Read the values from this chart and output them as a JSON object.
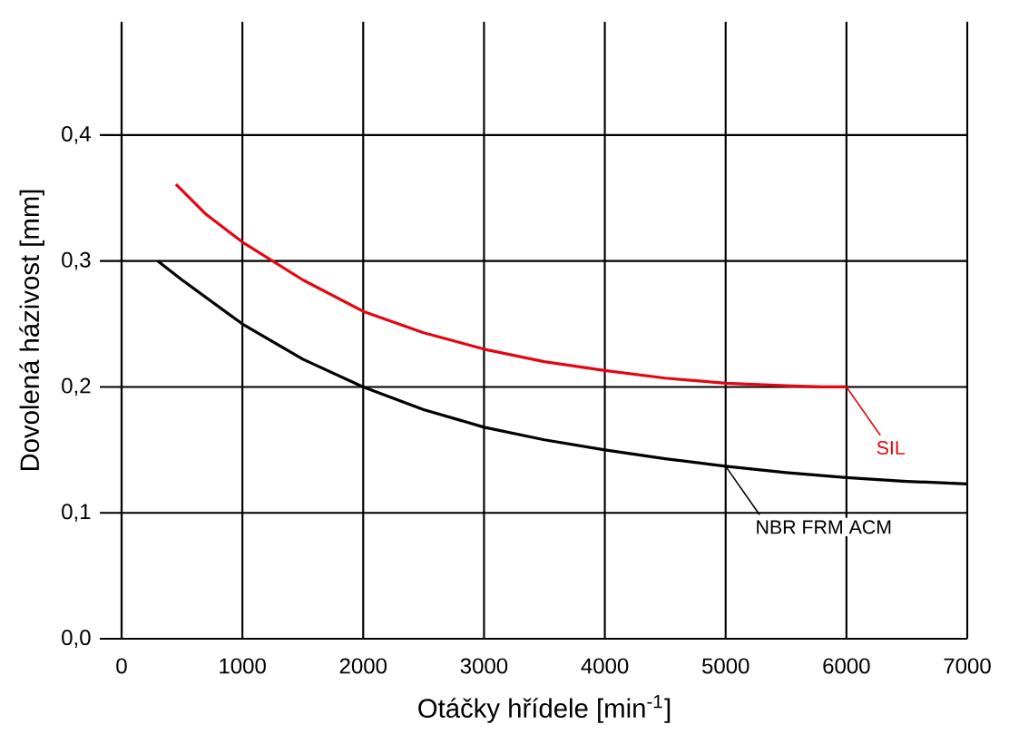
{
  "chart_data": {
    "type": "line",
    "xlabel": "Otáčky hřídele [min$^{-1}$]",
    "ylabel": "Dovolená házivost [mm]",
    "xlim": [
      0,
      7000
    ],
    "ylim": [
      0,
      0.49
    ],
    "xticks": [
      0,
      1000,
      2000,
      3000,
      4000,
      5000,
      6000,
      7000
    ],
    "yticks": [
      {
        "value": 0,
        "label": "0,0"
      },
      {
        "value": 0.1,
        "label": "0,1"
      },
      {
        "value": 0.2,
        "label": "0,2"
      },
      {
        "value": 0.3,
        "label": "0,3"
      },
      {
        "value": 0.4,
        "label": "0,4"
      }
    ],
    "grid": true,
    "legend": false,
    "marker": "none",
    "line_style": "solid",
    "series": [
      {
        "name": "SIL",
        "color": "#e30613",
        "x": [
          450,
          700,
          1000,
          1500,
          2000,
          2500,
          3000,
          3500,
          4000,
          4500,
          5000,
          5500,
          5800,
          6000
        ],
        "values": [
          0.361,
          0.337,
          0.315,
          0.285,
          0.26,
          0.243,
          0.23,
          0.22,
          0.213,
          0.207,
          0.203,
          0.201,
          0.2,
          0.2
        ]
      },
      {
        "name": "NBR FRM ACM",
        "color": "#000000",
        "x": [
          300,
          500,
          1000,
          1500,
          2000,
          2500,
          3000,
          3500,
          4000,
          4500,
          5000,
          5500,
          6000,
          6500,
          7000
        ],
        "values": [
          0.3,
          0.285,
          0.25,
          0.222,
          0.2,
          0.182,
          0.168,
          0.158,
          0.15,
          0.143,
          0.137,
          0.132,
          0.128,
          0.125,
          0.123
        ]
      }
    ]
  }
}
